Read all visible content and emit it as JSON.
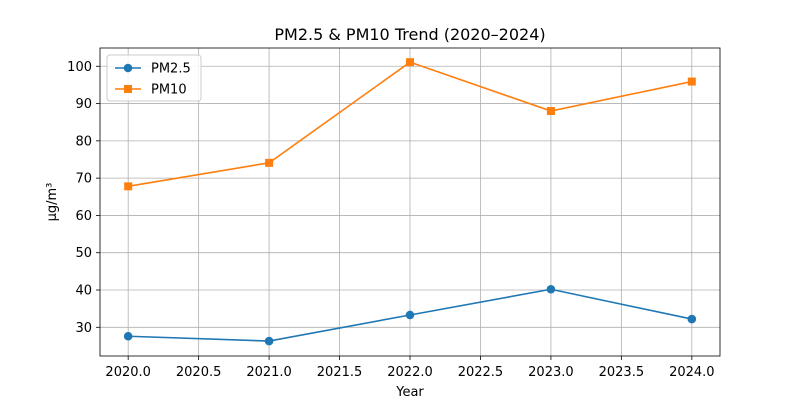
{
  "chart_data": {
    "type": "line",
    "title": "PM2.5 & PM10 Trend (2020–2024)",
    "xlabel": "Year",
    "ylabel": "μg/m³",
    "x": [
      2020,
      2021,
      2022,
      2023,
      2024
    ],
    "xlim": [
      2019.8,
      2024.2
    ],
    "ylim": [
      22.3,
      104.9
    ],
    "xticks": [
      2020.0,
      2020.5,
      2021.0,
      2021.5,
      2022.0,
      2022.5,
      2023.0,
      2023.5,
      2024.0
    ],
    "xtick_labels": [
      "2020.0",
      "2020.5",
      "2021.0",
      "2021.5",
      "2022.0",
      "2022.5",
      "2023.0",
      "2023.5",
      "2024.0"
    ],
    "yticks": [
      30,
      40,
      50,
      60,
      70,
      80,
      90,
      100
    ],
    "ytick_labels": [
      "30",
      "40",
      "50",
      "60",
      "70",
      "80",
      "90",
      "100"
    ],
    "grid": true,
    "legend_position": "upper-left",
    "series": [
      {
        "name": "PM2.5",
        "values": [
          27.6,
          26.3,
          33.3,
          40.2,
          32.2
        ],
        "color": "#1f77b4",
        "marker": "circle"
      },
      {
        "name": "PM10",
        "values": [
          67.8,
          74.1,
          101.1,
          88.0,
          95.9
        ],
        "color": "#ff7f0e",
        "marker": "square"
      }
    ]
  }
}
